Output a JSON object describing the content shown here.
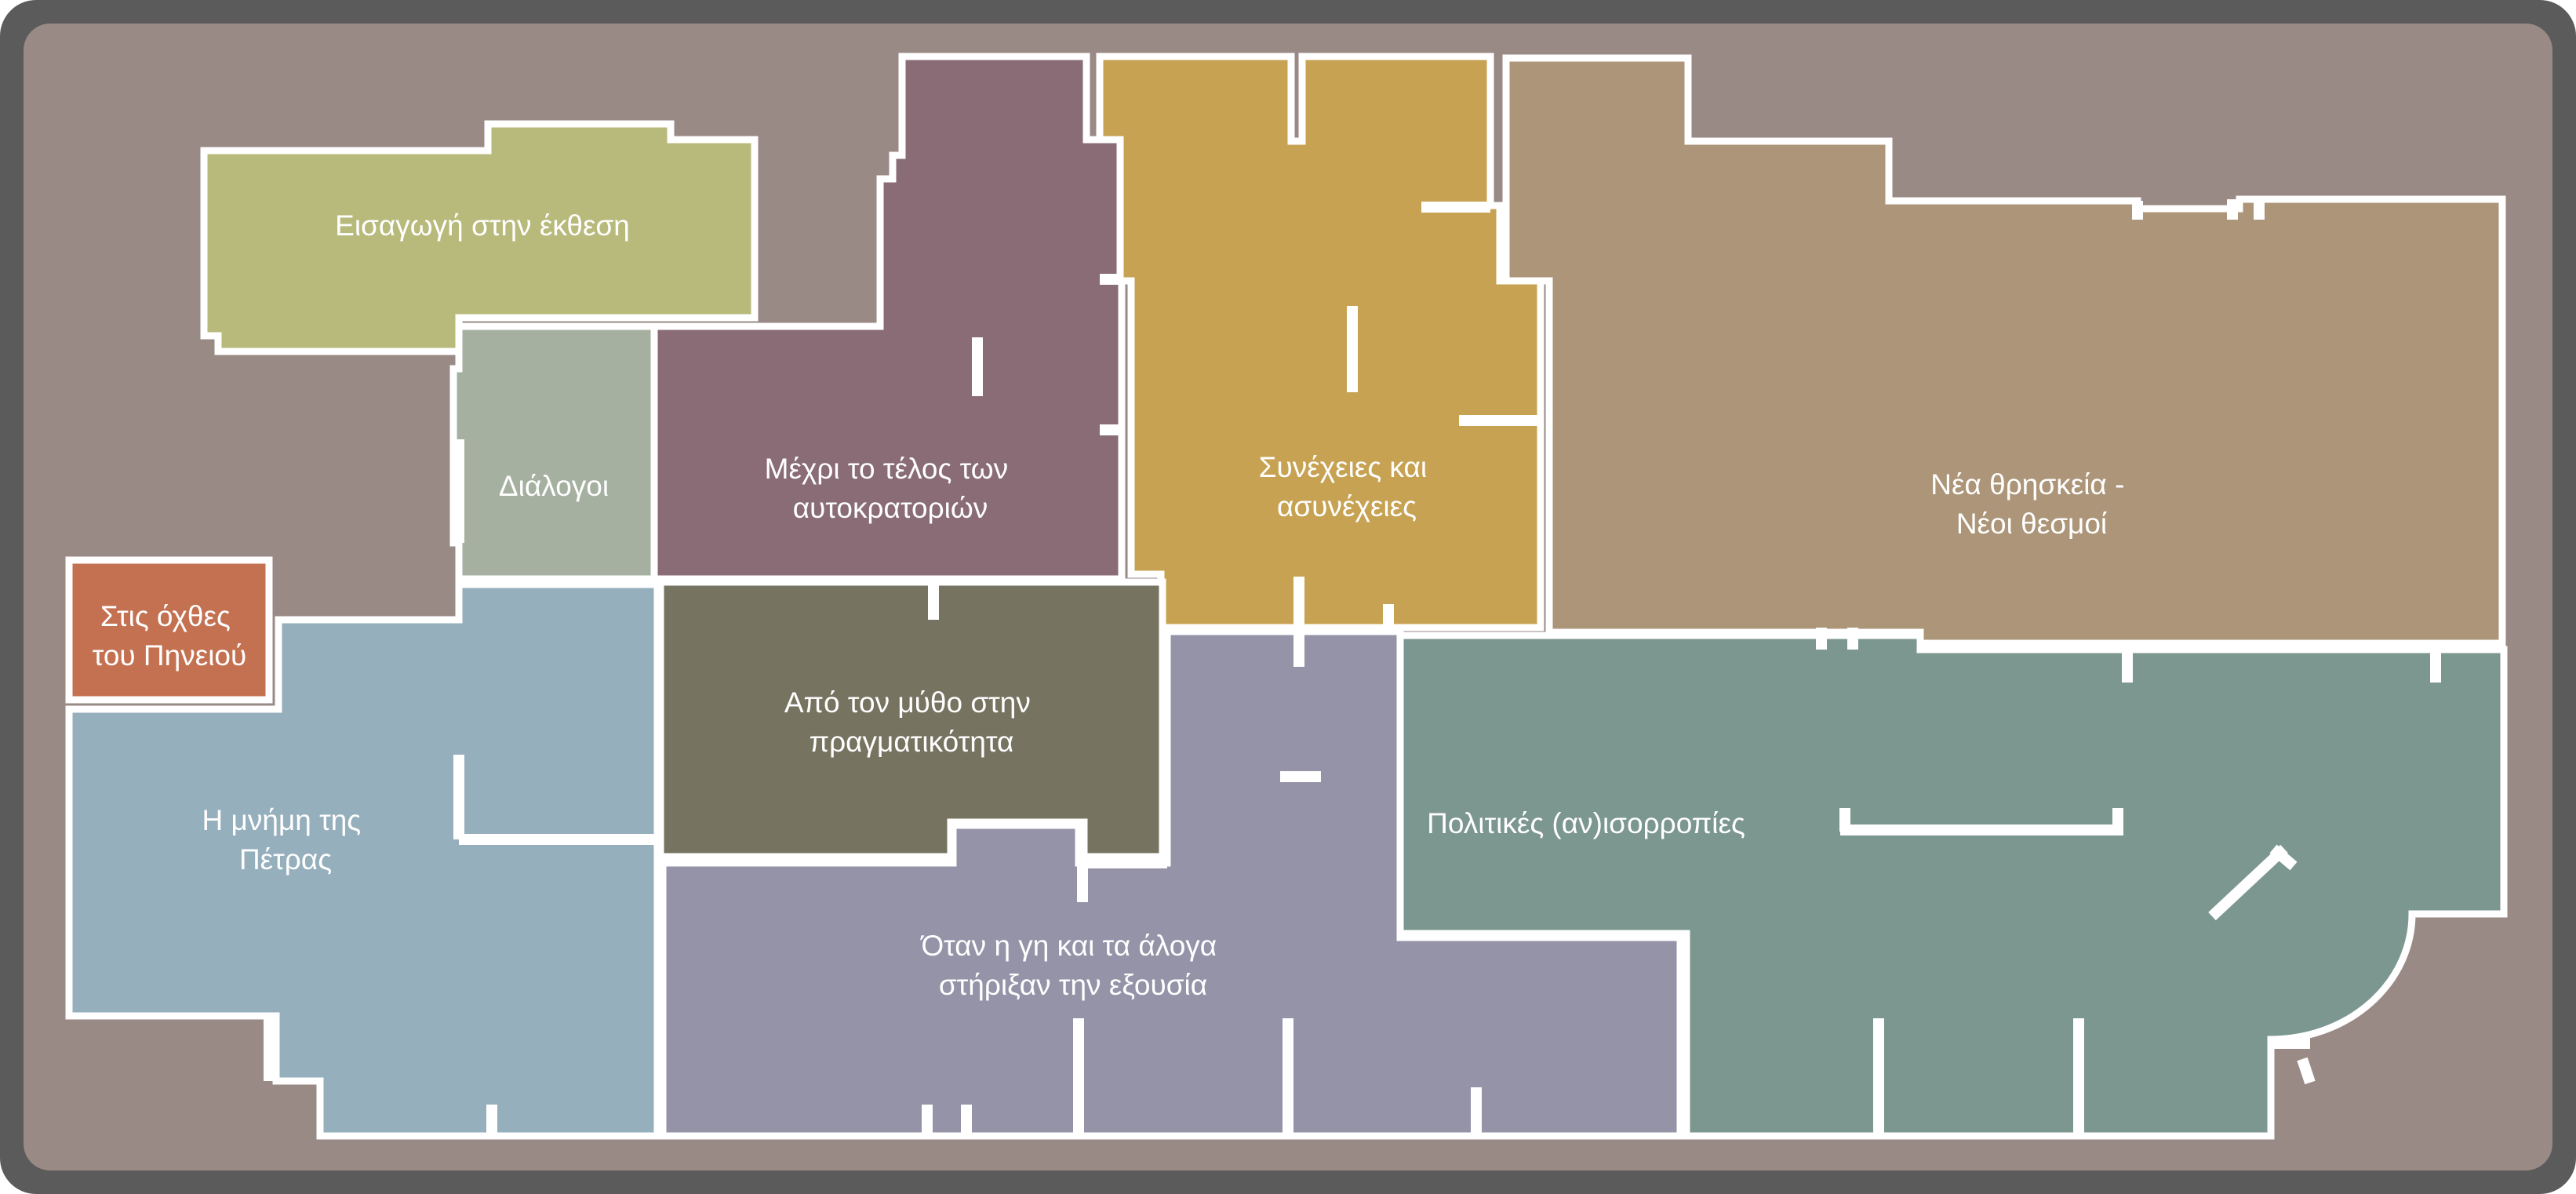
{
  "map": {
    "frame_color": "#5b5b5b",
    "background_color": "#9a8a86",
    "wall_color": "#ffffff",
    "rooms": [
      {
        "id": "introduction",
        "lines": [
          "Εισαγωγή στην έκθεση"
        ],
        "color": "#b8ba7c"
      },
      {
        "id": "dialogues",
        "lines": [
          "Διάλογοι"
        ],
        "color": "#a6b0a0"
      },
      {
        "id": "end-of-empires",
        "lines": [
          "Μέχρι το τέλος των",
          "αυτοκρατοριών"
        ],
        "color": "#896c76"
      },
      {
        "id": "continuities",
        "lines": [
          "Συνέχειες και",
          "ασυνέχειες"
        ],
        "color": "#c7a252"
      },
      {
        "id": "new-religion",
        "lines": [
          "Νέα θρησκεία -",
          "Νέοι θεσμοί"
        ],
        "color": "#ac9578"
      },
      {
        "id": "pineios-banks",
        "lines": [
          "Στις όχθες",
          "του Πηνειού"
        ],
        "color": "#c47152"
      },
      {
        "id": "memory-of-stone",
        "lines": [
          "Η μνήμη της",
          "Πέτρας"
        ],
        "color": "#96afbd"
      },
      {
        "id": "myth-to-reality",
        "lines": [
          "Από τον μύθο στην",
          "πραγματικότητα"
        ],
        "color": "#777361"
      },
      {
        "id": "land-and-horses",
        "lines": [
          "Όταν η γη και τα άλογα",
          "στήριξαν την εξουσία"
        ],
        "color": "#9493a8"
      },
      {
        "id": "political-balances",
        "lines": [
          "Πολιτικές (αν)ισορροπίες"
        ],
        "color": "#7c9690"
      }
    ]
  }
}
